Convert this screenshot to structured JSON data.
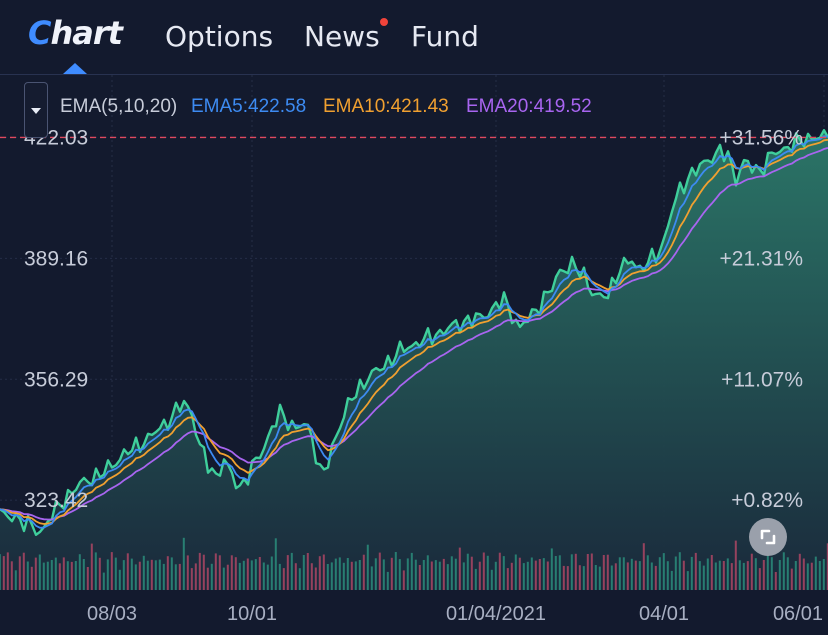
{
  "header": {
    "logo_first": "C",
    "logo_rest": "hart",
    "tabs": [
      {
        "label": "Options"
      },
      {
        "label": "News",
        "has_notification": true
      },
      {
        "label": "Fund"
      }
    ]
  },
  "legend": {
    "indicator": "EMA(5,10,20)",
    "ema5": "EMA5:422.58",
    "ema10": "EMA10:421.43",
    "ema20": "EMA20:419.52"
  },
  "colors": {
    "area": "#3fcf9c",
    "ema5": "#3d8bf2",
    "ema10": "#f0a030",
    "ema20": "#a865f0",
    "last_price_line": "#e0485e",
    "volume_up": "#2d9a84",
    "volume_down": "#c0496a"
  },
  "chart_data": {
    "type": "area",
    "y_ticks": [
      {
        "value": 422.03,
        "label": "422.03",
        "pct": "+31.56%"
      },
      {
        "value": 389.16,
        "label": "389.16",
        "pct": "+21.31%"
      },
      {
        "value": 356.29,
        "label": "356.29",
        "pct": "+11.07%"
      },
      {
        "value": 323.42,
        "label": "323.42",
        "pct": "+0.82%"
      }
    ],
    "x_ticks": [
      {
        "label": "08/03",
        "index": 28
      },
      {
        "label": "10/01",
        "index": 63
      },
      {
        "label": "01/04/2021",
        "index": 124
      },
      {
        "label": "04/01",
        "index": 166
      },
      {
        "label": "06/01",
        "index": 206
      }
    ],
    "last_price": 422.03,
    "ylim": [
      299,
      439
    ],
    "anchors": [
      [
        0,
        320.0
      ],
      [
        2,
        318.5
      ],
      [
        4,
        319.0
      ],
      [
        6,
        317.5
      ],
      [
        8,
        316.0
      ],
      [
        10,
        314.5
      ],
      [
        12,
        318.0
      ],
      [
        15,
        322.0
      ],
      [
        18,
        326.0
      ],
      [
        22,
        329.0
      ],
      [
        26,
        331.0
      ],
      [
        30,
        335.0
      ],
      [
        34,
        338.0
      ],
      [
        38,
        341.0
      ],
      [
        42,
        345.0
      ],
      [
        46,
        350.0
      ],
      [
        48,
        347.0
      ],
      [
        50,
        338.0
      ],
      [
        52,
        333.0
      ],
      [
        54,
        330.0
      ],
      [
        56,
        334.0
      ],
      [
        58,
        330.0
      ],
      [
        60,
        327.0
      ],
      [
        62,
        330.0
      ],
      [
        64,
        334.0
      ],
      [
        66,
        338.0
      ],
      [
        68,
        343.0
      ],
      [
        70,
        347.0
      ],
      [
        72,
        345.0
      ],
      [
        74,
        343.0
      ],
      [
        76,
        344.0
      ],
      [
        78,
        341.0
      ],
      [
        80,
        331.0
      ],
      [
        82,
        333.0
      ],
      [
        84,
        341.0
      ],
      [
        86,
        347.0
      ],
      [
        88,
        351.0
      ],
      [
        90,
        354.0
      ],
      [
        92,
        357.0
      ],
      [
        95,
        359.0
      ],
      [
        98,
        362.0
      ],
      [
        100,
        364.0
      ],
      [
        104,
        366.0
      ],
      [
        108,
        368.0
      ],
      [
        112,
        370.0
      ],
      [
        116,
        372.0
      ],
      [
        120,
        373.0
      ],
      [
        124,
        376.0
      ],
      [
        126,
        378.0
      ],
      [
        128,
        374.0
      ],
      [
        130,
        370.0
      ],
      [
        133,
        374.0
      ],
      [
        136,
        378.0
      ],
      [
        138,
        381.0
      ],
      [
        140,
        386.0
      ],
      [
        143,
        387.0
      ],
      [
        146,
        385.0
      ],
      [
        148,
        380.0
      ],
      [
        150,
        378.0
      ],
      [
        152,
        380.0
      ],
      [
        155,
        386.0
      ],
      [
        158,
        389.0
      ],
      [
        160,
        386.0
      ],
      [
        162,
        388.0
      ],
      [
        164,
        390.0
      ],
      [
        166,
        394.0
      ],
      [
        168,
        402.0
      ],
      [
        170,
        408.0
      ],
      [
        172,
        411.0
      ],
      [
        174,
        413.0
      ],
      [
        176,
        415.0
      ],
      [
        178,
        417.0
      ],
      [
        180,
        418.0
      ],
      [
        182,
        417.0
      ],
      [
        184,
        411.0
      ],
      [
        186,
        415.0
      ],
      [
        188,
        414.0
      ],
      [
        190,
        413.0
      ],
      [
        192,
        416.0
      ],
      [
        194,
        418.0
      ],
      [
        196,
        419.0
      ],
      [
        198,
        420.0
      ],
      [
        200,
        421.0
      ],
      [
        202,
        422.0
      ],
      [
        205,
        422.03
      ]
    ]
  }
}
